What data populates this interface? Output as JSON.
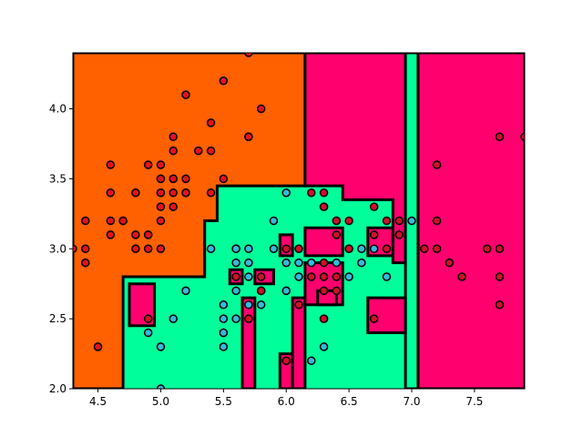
{
  "chart_data": {
    "type": "scatter",
    "title": "",
    "xlabel": "",
    "ylabel": "",
    "xlim": [
      4.3,
      7.9
    ],
    "ylim": [
      2.0,
      4.4
    ],
    "grid": false,
    "x_ticks": [
      4.5,
      5.0,
      5.5,
      6.0,
      6.5,
      7.0,
      7.5
    ],
    "y_ticks": [
      2.0,
      2.5,
      3.0,
      3.5,
      4.0
    ],
    "x_tick_labels": [
      "4.5",
      "5.0",
      "5.5",
      "6.0",
      "6.5",
      "7.0",
      "7.5"
    ],
    "y_tick_labels": [
      "2.0",
      "2.5",
      "3.0",
      "3.5",
      "4.0"
    ],
    "classes": [
      {
        "color": "#ff6000",
        "point_color": "#e8101a"
      },
      {
        "color": "#00ff9a",
        "point_color": "#33bbe0"
      },
      {
        "color": "#ff006e",
        "point_color": "#d0102a"
      }
    ],
    "regions": [
      {
        "class": 0,
        "polygon": [
          [
            4.3,
            2.0
          ],
          [
            4.7,
            2.0
          ],
          [
            4.7,
            2.8
          ],
          [
            5.05,
            2.8
          ],
          [
            5.05,
            2.8
          ],
          [
            5.35,
            2.8
          ],
          [
            5.35,
            3.2
          ],
          [
            5.45,
            3.2
          ],
          [
            5.45,
            3.45
          ],
          [
            6.15,
            3.45
          ],
          [
            6.15,
            4.4
          ],
          [
            4.3,
            4.4
          ]
        ]
      },
      {
        "class": 2,
        "polygon": [
          [
            6.15,
            4.4
          ],
          [
            6.15,
            3.45
          ],
          [
            6.45,
            3.45
          ],
          [
            6.45,
            3.35
          ],
          [
            6.85,
            3.35
          ],
          [
            6.85,
            2.9
          ],
          [
            6.95,
            2.9
          ],
          [
            6.95,
            4.4
          ]
        ]
      },
      {
        "class": 2,
        "polygon": [
          [
            7.05,
            2.0
          ],
          [
            7.9,
            2.0
          ],
          [
            7.9,
            4.4
          ],
          [
            7.05,
            4.4
          ]
        ]
      },
      {
        "class": 1,
        "polygon": [
          [
            6.95,
            4.4
          ],
          [
            7.05,
            4.4
          ],
          [
            7.05,
            2.0
          ],
          [
            6.95,
            2.0
          ]
        ]
      },
      {
        "class": 2,
        "polygon": [
          [
            4.75,
            2.45
          ],
          [
            4.95,
            2.45
          ],
          [
            4.95,
            2.75
          ],
          [
            4.75,
            2.75
          ]
        ]
      },
      {
        "class": 2,
        "polygon": [
          [
            5.65,
            2.0
          ],
          [
            5.75,
            2.0
          ],
          [
            5.75,
            2.65
          ],
          [
            5.65,
            2.65
          ]
        ]
      },
      {
        "class": 2,
        "polygon": [
          [
            5.55,
            2.75
          ],
          [
            5.65,
            2.75
          ],
          [
            5.65,
            2.85
          ],
          [
            5.55,
            2.85
          ]
        ]
      },
      {
        "class": 2,
        "polygon": [
          [
            5.75,
            2.75
          ],
          [
            5.9,
            2.75
          ],
          [
            5.9,
            2.85
          ],
          [
            5.75,
            2.85
          ]
        ]
      },
      {
        "class": 2,
        "polygon": [
          [
            5.95,
            2.0
          ],
          [
            6.05,
            2.0
          ],
          [
            6.05,
            2.25
          ],
          [
            5.95,
            2.25
          ]
        ]
      },
      {
        "class": 2,
        "polygon": [
          [
            6.05,
            2.0
          ],
          [
            6.15,
            2.0
          ],
          [
            6.15,
            2.65
          ],
          [
            6.05,
            2.65
          ]
        ]
      },
      {
        "class": 2,
        "polygon": [
          [
            6.15,
            2.6
          ],
          [
            6.45,
            2.6
          ],
          [
            6.45,
            2.9
          ],
          [
            6.15,
            2.9
          ]
        ]
      },
      {
        "class": 2,
        "polygon": [
          [
            6.15,
            2.95
          ],
          [
            6.45,
            2.95
          ],
          [
            6.45,
            3.15
          ],
          [
            6.15,
            3.15
          ]
        ]
      },
      {
        "class": 2,
        "polygon": [
          [
            6.65,
            2.95
          ],
          [
            6.85,
            2.95
          ],
          [
            6.85,
            3.15
          ],
          [
            6.65,
            3.15
          ]
        ]
      },
      {
        "class": 2,
        "polygon": [
          [
            5.95,
            2.95
          ],
          [
            6.05,
            2.95
          ],
          [
            6.05,
            3.1
          ],
          [
            5.95,
            3.1
          ]
        ]
      },
      {
        "class": 2,
        "polygon": [
          [
            6.65,
            2.4
          ],
          [
            6.95,
            2.4
          ],
          [
            6.95,
            2.65
          ],
          [
            6.65,
            2.65
          ]
        ]
      },
      {
        "class": 2,
        "polygon": [
          [
            6.25,
            2.6
          ],
          [
            6.4,
            2.6
          ],
          [
            6.4,
            2.7
          ],
          [
            6.25,
            2.7
          ]
        ]
      }
    ],
    "series": [
      {
        "class": 0,
        "x": [
          4.3,
          4.4,
          4.4,
          4.4,
          4.5,
          4.6,
          4.6,
          4.6,
          4.6,
          4.7,
          4.7,
          4.8,
          4.8,
          4.8,
          4.9,
          4.9,
          4.9,
          4.9,
          5.0,
          5.0,
          5.0,
          5.0,
          5.0,
          5.0,
          5.0,
          5.1,
          5.1,
          5.1,
          5.1,
          5.1,
          5.1,
          5.2,
          5.2,
          5.2,
          5.3,
          5.4,
          5.4,
          5.4,
          5.5,
          5.5,
          5.7,
          5.7,
          5.7,
          5.8,
          5.8,
          4.5,
          5.0,
          5.2
        ],
        "y": [
          3.0,
          3.2,
          3.0,
          2.9,
          2.3,
          3.6,
          3.4,
          3.2,
          3.1,
          3.2,
          3.2,
          3.4,
          3.1,
          3.0,
          3.6,
          3.1,
          3.0,
          3.1,
          3.6,
          3.5,
          3.4,
          3.3,
          3.2,
          3.0,
          3.4,
          3.8,
          3.7,
          3.5,
          3.5,
          3.4,
          3.3,
          4.1,
          3.5,
          3.4,
          3.7,
          3.9,
          3.7,
          3.4,
          4.2,
          3.5,
          4.4,
          3.8,
          3.8,
          4.0,
          2.7,
          2.3,
          3.5,
          3.4
        ]
      },
      {
        "class": 1,
        "x": [
          4.9,
          5.0,
          5.0,
          5.1,
          5.2,
          5.4,
          5.5,
          5.5,
          5.5,
          5.5,
          5.5,
          5.6,
          5.6,
          5.6,
          5.6,
          5.6,
          5.7,
          5.7,
          5.7,
          5.7,
          5.8,
          5.8,
          5.8,
          5.9,
          5.9,
          6.0,
          6.0,
          6.0,
          6.0,
          6.1,
          6.1,
          6.1,
          6.2,
          6.2,
          6.3,
          6.3,
          6.3,
          6.4,
          6.4,
          6.5,
          6.6,
          6.6,
          6.7,
          6.7,
          6.8,
          7.0
        ],
        "y": [
          2.4,
          2.3,
          2.0,
          2.5,
          2.7,
          3.0,
          2.4,
          2.5,
          2.3,
          2.6,
          2.4,
          2.9,
          3.0,
          2.7,
          2.5,
          3.0,
          2.8,
          2.6,
          3.0,
          2.9,
          2.7,
          2.6,
          2.7,
          3.0,
          3.2,
          2.2,
          2.9,
          3.4,
          2.7,
          2.8,
          2.9,
          3.0,
          2.2,
          2.9,
          2.5,
          2.3,
          3.3,
          3.2,
          2.9,
          2.8,
          2.9,
          3.0,
          3.1,
          3.0,
          2.8,
          3.2
        ]
      },
      {
        "class": 2,
        "x": [
          4.9,
          5.6,
          5.7,
          5.8,
          5.8,
          6.0,
          6.0,
          6.1,
          6.1,
          6.2,
          6.3,
          6.3,
          6.3,
          6.3,
          6.3,
          6.4,
          6.4,
          6.4,
          6.4,
          6.5,
          6.5,
          6.5,
          6.7,
          6.7,
          6.7,
          6.8,
          6.8,
          6.9,
          6.9,
          7.1,
          7.2,
          7.2,
          7.2,
          7.3,
          7.4,
          7.6,
          7.7,
          7.7,
          7.7,
          7.7,
          7.9,
          6.2,
          6.3,
          6.4
        ],
        "y": [
          2.5,
          2.8,
          2.5,
          2.8,
          2.7,
          2.2,
          3.0,
          2.6,
          3.0,
          3.4,
          3.4,
          3.3,
          2.9,
          2.8,
          2.5,
          3.2,
          3.1,
          2.8,
          2.7,
          3.2,
          3.0,
          3.0,
          3.3,
          3.1,
          2.5,
          3.2,
          3.0,
          3.2,
          3.1,
          3.0,
          3.6,
          3.2,
          3.0,
          2.9,
          2.8,
          3.0,
          3.8,
          3.0,
          2.8,
          2.6,
          3.8,
          2.8,
          2.7,
          2.8
        ]
      }
    ]
  }
}
